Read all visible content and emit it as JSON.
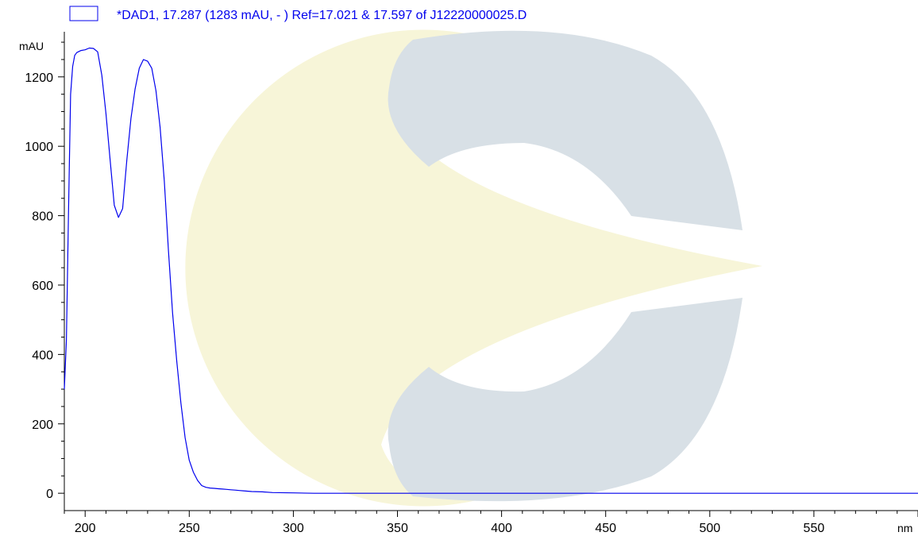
{
  "chart_data": {
    "type": "line",
    "legend_text": "*DAD1, 17.287 (1283 mAU, - ) Ref=17.021 & 17.597 of J12220000025.D",
    "xlabel": "nm",
    "ylabel": "mAU",
    "xlim": [
      190,
      600
    ],
    "ylim": [
      -50,
      1330
    ],
    "x_ticks": [
      200,
      250,
      300,
      350,
      400,
      450,
      500,
      550
    ],
    "y_ticks": [
      0,
      200,
      400,
      600,
      800,
      1000,
      1200
    ],
    "grid": false,
    "legend_position": "top-left",
    "series_color": "#0000ee",
    "watermark_colors": [
      "#f7f5d8",
      "#d8e0e6"
    ],
    "series": [
      {
        "x": [
          190,
          191,
          192,
          193,
          194,
          195,
          196,
          198,
          200,
          202,
          204,
          206,
          208,
          210,
          212,
          214,
          216,
          218,
          220,
          222,
          224,
          226,
          228,
          230,
          232,
          234,
          236,
          238,
          240,
          242,
          244,
          246,
          248,
          250,
          252,
          254,
          256,
          258,
          260,
          262,
          264,
          266,
          268,
          270,
          272,
          274,
          276,
          280,
          285,
          290,
          300,
          310,
          320,
          340,
          400,
          500,
          600
        ],
        "y": [
          300,
          440,
          800,
          1150,
          1230,
          1262,
          1270,
          1276,
          1278,
          1283,
          1282,
          1272,
          1205,
          1095,
          960,
          830,
          795,
          820,
          960,
          1080,
          1165,
          1225,
          1250,
          1245,
          1225,
          1160,
          1055,
          900,
          700,
          520,
          380,
          260,
          160,
          95,
          60,
          37,
          22,
          17,
          15,
          14,
          13,
          12,
          11,
          10,
          9,
          8,
          7,
          5,
          4,
          2,
          1,
          0,
          0,
          0,
          0,
          0,
          0
        ]
      }
    ]
  }
}
